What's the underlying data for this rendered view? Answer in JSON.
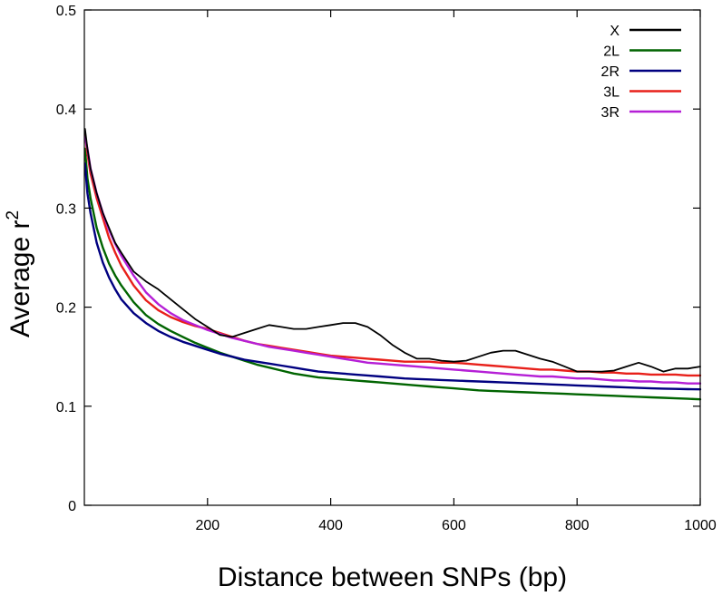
{
  "chart_data": {
    "type": "line",
    "title": "",
    "xlabel": "Distance between SNPs (bp)",
    "ylabel_main": "Average r",
    "ylabel_superscript": "2",
    "xlim": [
      0,
      1000
    ],
    "ylim": [
      0,
      0.5
    ],
    "xticks": [
      200,
      400,
      600,
      800,
      1000
    ],
    "xtick_labels": [
      "200",
      "400",
      "600",
      "800",
      "1000"
    ],
    "yticks": [
      0,
      0.1,
      0.2,
      0.3,
      0.4,
      0.5
    ],
    "ytick_labels": [
      "0",
      "0.1",
      "0.2",
      "0.3",
      "0.4",
      "0.5"
    ],
    "grid": false,
    "legend_position": "top-right",
    "x": [
      1,
      5,
      10,
      20,
      30,
      40,
      50,
      60,
      80,
      100,
      120,
      140,
      160,
      180,
      200,
      220,
      240,
      260,
      280,
      300,
      320,
      340,
      360,
      380,
      400,
      420,
      440,
      460,
      480,
      500,
      520,
      540,
      560,
      580,
      600,
      620,
      640,
      660,
      680,
      700,
      720,
      740,
      760,
      780,
      800,
      820,
      840,
      860,
      880,
      900,
      920,
      940,
      960,
      980,
      1000
    ],
    "series": [
      {
        "name": "X",
        "color": "#000000",
        "values": [
          0.38,
          0.36,
          0.34,
          0.315,
          0.295,
          0.28,
          0.265,
          0.255,
          0.236,
          0.226,
          0.218,
          0.208,
          0.198,
          0.188,
          0.18,
          0.172,
          0.17,
          0.174,
          0.178,
          0.182,
          0.18,
          0.178,
          0.178,
          0.18,
          0.182,
          0.184,
          0.184,
          0.18,
          0.172,
          0.162,
          0.154,
          0.148,
          0.148,
          0.146,
          0.145,
          0.146,
          0.15,
          0.154,
          0.156,
          0.156,
          0.152,
          0.148,
          0.145,
          0.14,
          0.135,
          0.135,
          0.135,
          0.136,
          0.14,
          0.144,
          0.14,
          0.135,
          0.138,
          0.138,
          0.14
        ]
      },
      {
        "name": "2L",
        "color": "#006400",
        "values": [
          0.36,
          0.33,
          0.31,
          0.28,
          0.26,
          0.244,
          0.232,
          0.222,
          0.205,
          0.192,
          0.183,
          0.176,
          0.17,
          0.164,
          0.159,
          0.154,
          0.15,
          0.146,
          0.142,
          0.139,
          0.136,
          0.133,
          0.131,
          0.129,
          0.128,
          0.127,
          0.126,
          0.125,
          0.124,
          0.123,
          0.122,
          0.121,
          0.12,
          0.119,
          0.118,
          0.117,
          0.116,
          0.1155,
          0.115,
          0.1145,
          0.114,
          0.1135,
          0.113,
          0.1125,
          0.112,
          0.1115,
          0.111,
          0.1105,
          0.11,
          0.1095,
          0.109,
          0.1085,
          0.108,
          0.1075,
          0.107
        ]
      },
      {
        "name": "2R",
        "color": "#000080",
        "values": [
          0.345,
          0.315,
          0.295,
          0.265,
          0.245,
          0.23,
          0.218,
          0.208,
          0.194,
          0.184,
          0.176,
          0.17,
          0.165,
          0.161,
          0.157,
          0.153,
          0.15,
          0.147,
          0.145,
          0.143,
          0.141,
          0.139,
          0.137,
          0.135,
          0.134,
          0.133,
          0.132,
          0.131,
          0.13,
          0.129,
          0.128,
          0.1275,
          0.127,
          0.1265,
          0.126,
          0.1255,
          0.125,
          0.1245,
          0.124,
          0.1235,
          0.123,
          0.1225,
          0.122,
          0.1215,
          0.121,
          0.1205,
          0.12,
          0.1195,
          0.119,
          0.1185,
          0.118,
          0.1178,
          0.1175,
          0.1172,
          0.117
        ]
      },
      {
        "name": "3L",
        "color": "#e8201a",
        "values": [
          0.375,
          0.355,
          0.335,
          0.31,
          0.29,
          0.27,
          0.255,
          0.242,
          0.222,
          0.207,
          0.197,
          0.19,
          0.185,
          0.181,
          0.178,
          0.174,
          0.17,
          0.166,
          0.163,
          0.161,
          0.159,
          0.157,
          0.155,
          0.153,
          0.151,
          0.15,
          0.149,
          0.148,
          0.147,
          0.146,
          0.145,
          0.145,
          0.145,
          0.144,
          0.144,
          0.143,
          0.142,
          0.141,
          0.14,
          0.139,
          0.138,
          0.137,
          0.137,
          0.136,
          0.135,
          0.135,
          0.134,
          0.134,
          0.133,
          0.133,
          0.132,
          0.132,
          0.132,
          0.131,
          0.131
        ]
      },
      {
        "name": "3R",
        "color": "#b51fd6",
        "values": [
          0.372,
          0.36,
          0.34,
          0.315,
          0.295,
          0.278,
          0.264,
          0.252,
          0.232,
          0.215,
          0.203,
          0.194,
          0.187,
          0.182,
          0.177,
          0.173,
          0.169,
          0.166,
          0.163,
          0.16,
          0.158,
          0.156,
          0.154,
          0.152,
          0.15,
          0.148,
          0.146,
          0.144,
          0.143,
          0.142,
          0.141,
          0.14,
          0.139,
          0.138,
          0.137,
          0.136,
          0.135,
          0.134,
          0.133,
          0.132,
          0.131,
          0.13,
          0.13,
          0.129,
          0.128,
          0.128,
          0.127,
          0.126,
          0.126,
          0.125,
          0.125,
          0.124,
          0.124,
          0.123,
          0.123
        ]
      }
    ]
  }
}
